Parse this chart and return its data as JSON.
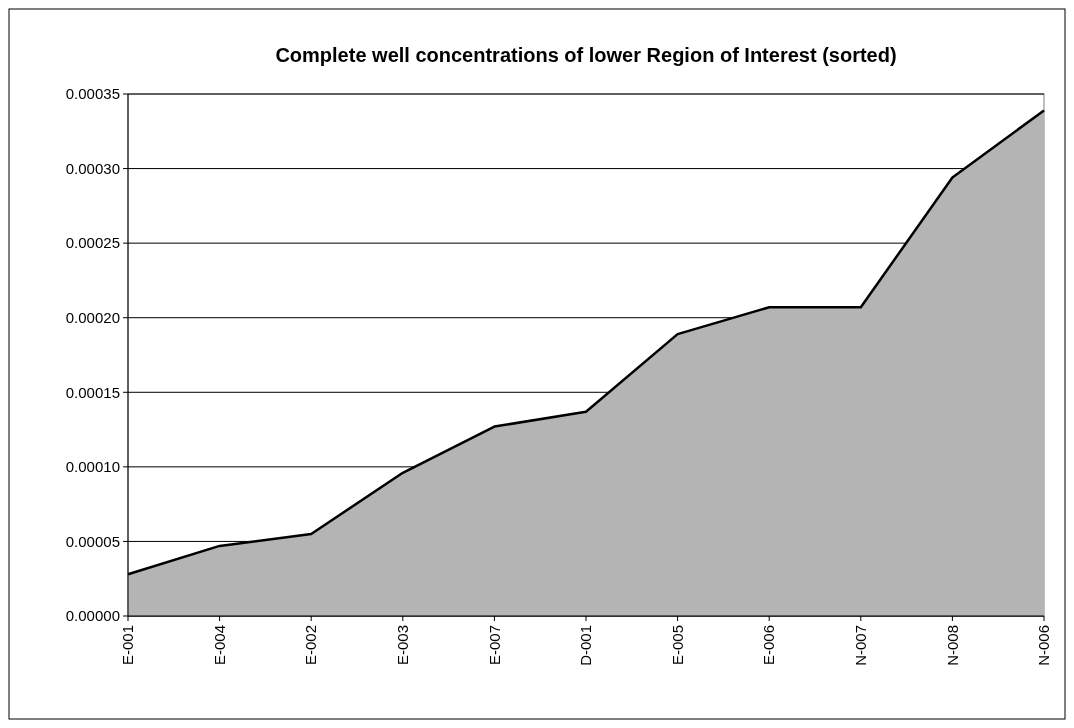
{
  "chart_data": {
    "type": "area",
    "title": "Complete well concentrations of lower Region of Interest (sorted)",
    "categories": [
      "E-001",
      "E-004",
      "E-002",
      "E-003",
      "E-007",
      "D-001",
      "E-005",
      "E-006",
      "N-007",
      "N-008",
      "N-006"
    ],
    "values": [
      2.8e-05,
      4.7e-05,
      5.5e-05,
      9.6e-05,
      0.000127,
      0.000137,
      0.000189,
      0.000207,
      0.000207,
      0.000294,
      0.000339
    ],
    "color": "#b4b4b4",
    "ylim": [
      0,
      0.00035
    ],
    "yticks": [
      {
        "value": 0,
        "label": "0.00000"
      },
      {
        "value": 5e-05,
        "label": "0.00005"
      },
      {
        "value": 0.0001,
        "label": "0.00010"
      },
      {
        "value": 0.00015,
        "label": "0.00015"
      },
      {
        "value": 0.0002,
        "label": "0.00020"
      },
      {
        "value": 0.00025,
        "label": "0.00025"
      },
      {
        "value": 0.0003,
        "label": "0.00030"
      },
      {
        "value": 0.00035,
        "label": "0.00035"
      }
    ],
    "grid": "y"
  }
}
